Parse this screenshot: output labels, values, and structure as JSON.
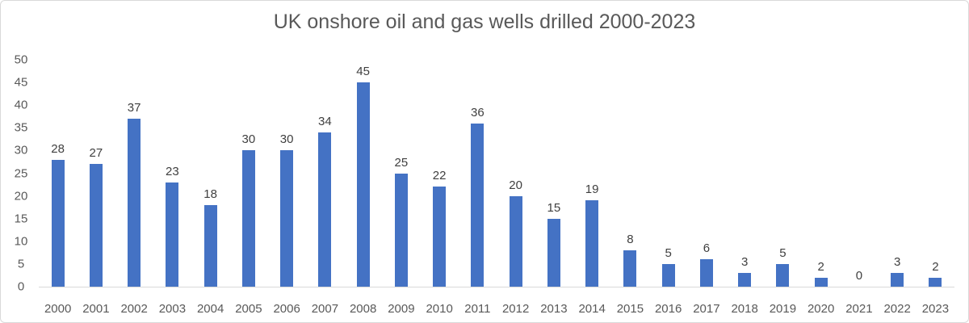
{
  "chart_data": {
    "type": "bar",
    "title": "UK onshore oil and gas wells drilled 2000-2023",
    "categories": [
      "2000",
      "2001",
      "2002",
      "2003",
      "2004",
      "2005",
      "2006",
      "2007",
      "2008",
      "2009",
      "2010",
      "2011",
      "2012",
      "2013",
      "2014",
      "2015",
      "2016",
      "2017",
      "2018",
      "2019",
      "2020",
      "2021",
      "2022",
      "2023"
    ],
    "values": [
      28,
      27,
      37,
      23,
      18,
      30,
      30,
      34,
      45,
      25,
      22,
      36,
      20,
      15,
      19,
      8,
      5,
      6,
      3,
      5,
      2,
      0,
      3,
      2
    ],
    "y_ticks": [
      0,
      5,
      10,
      15,
      20,
      25,
      30,
      35,
      40,
      45,
      50
    ],
    "ylim": [
      0,
      50
    ],
    "xlabel": "",
    "ylabel": "",
    "grid": false,
    "legend": "none",
    "data_labels": true,
    "colors": {
      "bar": "#4472C4",
      "title": "#595959",
      "tick_label": "#595959",
      "data_label": "#3F3F3F",
      "axis_line": "#D9D9D9",
      "border": "#D9D9D9",
      "background": "#FFFFFF"
    }
  }
}
